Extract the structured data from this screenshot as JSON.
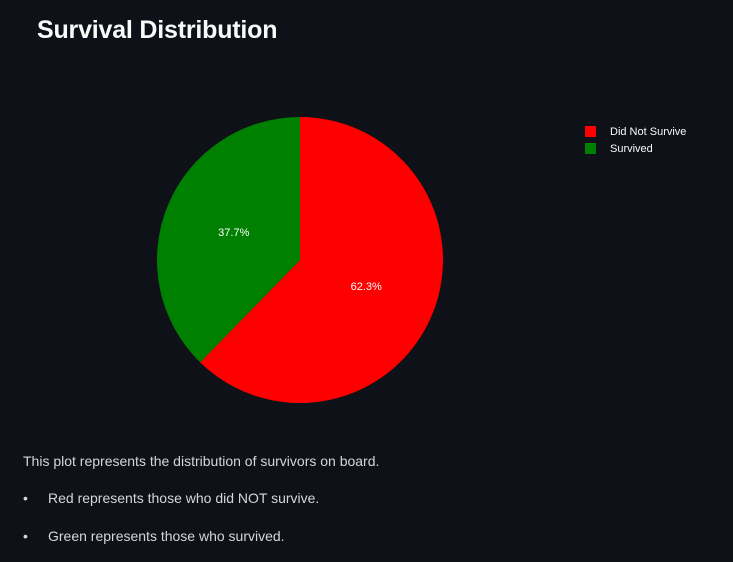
{
  "page_title": "Survival Distribution",
  "chart_data": {
    "type": "pie",
    "categories": [
      "Did Not Survive",
      "Survived"
    ],
    "values": [
      62.3,
      37.7
    ],
    "labels": [
      "62.3%",
      "37.7%"
    ],
    "colors": [
      "#ff0000",
      "#008000"
    ],
    "legend_position": "top-right"
  },
  "legend": {
    "items": [
      {
        "label": "Did Not Survive",
        "color": "#ff0000"
      },
      {
        "label": "Survived",
        "color": "#008000"
      }
    ]
  },
  "description": {
    "intro": "This plot represents the distribution of survivors on board.",
    "bullet_char": "•",
    "bullets": [
      "Red represents those who did NOT survive.",
      "Green represents those who survived."
    ]
  },
  "colors": {
    "background": "#0e1117",
    "text": "#fafafa"
  }
}
